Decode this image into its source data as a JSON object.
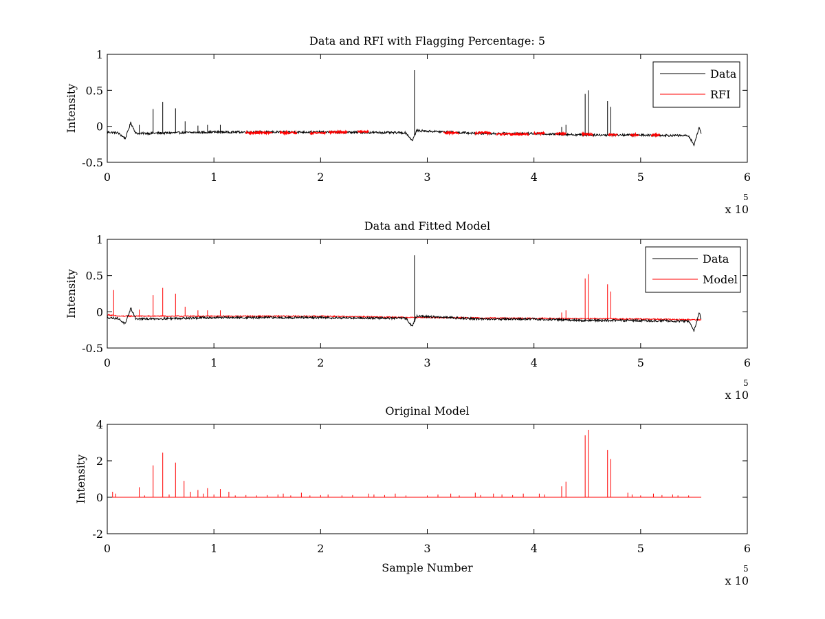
{
  "figure": {
    "background": "#ffffff"
  },
  "chart_data": [
    {
      "id": "panel1",
      "type": "line",
      "title": "Data and RFI with Flagging Percentage: 5",
      "xlabel": "",
      "ylabel": "Intensity",
      "xlim": [
        0,
        6
      ],
      "ylim": [
        -0.5,
        1
      ],
      "x_ticks": [
        0,
        1,
        2,
        3,
        4,
        5,
        6
      ],
      "x_tick_labels": [
        "0",
        "1",
        "2",
        "3",
        "4",
        "5",
        "6"
      ],
      "y_ticks": [
        -0.5,
        0,
        0.5,
        1
      ],
      "y_tick_labels": [
        "-0.5",
        "0",
        "0.5",
        "1"
      ],
      "x_exponent": {
        "base": "x 10",
        "power": "5"
      },
      "legend": {
        "position": "top-right",
        "entries": [
          "Data",
          "RFI"
        ]
      },
      "series": [
        {
          "name": "Data",
          "color": "#000000",
          "baseline": [
            [
              0,
              -0.08
            ],
            [
              0.1,
              -0.09
            ],
            [
              0.17,
              -0.17
            ],
            [
              0.22,
              0.05
            ],
            [
              0.27,
              -0.1
            ],
            [
              1,
              -0.08
            ],
            [
              2,
              -0.08
            ],
            [
              2.8,
              -0.09
            ],
            [
              2.86,
              -0.2
            ],
            [
              2.9,
              -0.06
            ],
            [
              3.5,
              -0.1
            ],
            [
              4,
              -0.1
            ],
            [
              4.5,
              -0.12
            ],
            [
              5,
              -0.12
            ],
            [
              5.45,
              -0.13
            ],
            [
              5.5,
              -0.26
            ],
            [
              5.55,
              -0.01
            ],
            [
              5.57,
              -0.12
            ]
          ],
          "noise": 0.015,
          "spikes": [
            [
              0.3,
              0.02
            ],
            [
              0.43,
              0.24
            ],
            [
              0.52,
              0.34
            ],
            [
              0.64,
              0.25
            ],
            [
              0.73,
              0.07
            ],
            [
              0.85,
              0.01
            ],
            [
              0.94,
              0.02
            ],
            [
              1.06,
              0.02
            ],
            [
              2.88,
              0.78
            ],
            [
              4.26,
              -0.01
            ],
            [
              4.3,
              0.02
            ],
            [
              4.48,
              0.45
            ],
            [
              4.51,
              0.5
            ],
            [
              4.69,
              0.35
            ],
            [
              4.72,
              0.27
            ]
          ]
        },
        {
          "name": "RFI",
          "color": "#ff0000",
          "segments": [
            [
              1.3,
              1.55,
              -0.09
            ],
            [
              1.62,
              1.78,
              -0.09
            ],
            [
              1.9,
              2.05,
              -0.09
            ],
            [
              2.08,
              2.25,
              -0.08
            ],
            [
              2.35,
              2.45,
              -0.07
            ],
            [
              3.15,
              3.3,
              -0.09
            ],
            [
              3.45,
              3.6,
              -0.09
            ],
            [
              3.65,
              3.95,
              -0.11
            ],
            [
              4.0,
              4.1,
              -0.1
            ],
            [
              4.2,
              4.3,
              -0.1
            ],
            [
              4.45,
              4.55,
              -0.11
            ],
            [
              4.7,
              4.78,
              -0.12
            ],
            [
              4.9,
              4.98,
              -0.12
            ],
            [
              5.1,
              5.18,
              -0.12
            ]
          ],
          "noise": 0.015
        }
      ]
    },
    {
      "id": "panel2",
      "type": "line",
      "title": "Data and Fitted Model",
      "xlabel": "",
      "ylabel": "Intensity",
      "xlim": [
        0,
        6
      ],
      "ylim": [
        -0.5,
        1
      ],
      "x_ticks": [
        0,
        1,
        2,
        3,
        4,
        5,
        6
      ],
      "x_tick_labels": [
        "0",
        "1",
        "2",
        "3",
        "4",
        "5",
        "6"
      ],
      "y_ticks": [
        -0.5,
        0,
        0.5,
        1
      ],
      "y_tick_labels": [
        "-0.5",
        "0",
        "0.5",
        "1"
      ],
      "x_exponent": {
        "base": "x 10",
        "power": "5"
      },
      "legend": {
        "position": "top-right",
        "entries": [
          "Data",
          "Model"
        ]
      },
      "series": [
        {
          "name": "Model",
          "color": "#ff0000",
          "baseline": [
            [
              0,
              -0.04
            ],
            [
              0.1,
              -0.06
            ],
            [
              0.5,
              -0.06
            ],
            [
              1,
              -0.06
            ],
            [
              2,
              -0.06
            ],
            [
              3,
              -0.08
            ],
            [
              4,
              -0.09
            ],
            [
              5,
              -0.1
            ],
            [
              5.57,
              -0.11
            ]
          ],
          "noise": 0.008,
          "spikes": [
            [
              0.06,
              0.3
            ],
            [
              0.3,
              0.03
            ],
            [
              0.43,
              0.23
            ],
            [
              0.52,
              0.33
            ],
            [
              0.64,
              0.25
            ],
            [
              0.73,
              0.07
            ],
            [
              0.85,
              0.02
            ],
            [
              0.94,
              0.02
            ],
            [
              1.06,
              0.02
            ],
            [
              4.26,
              -0.01
            ],
            [
              4.3,
              0.02
            ],
            [
              4.48,
              0.46
            ],
            [
              4.51,
              0.52
            ],
            [
              4.69,
              0.38
            ],
            [
              4.72,
              0.28
            ]
          ]
        },
        {
          "name": "Data",
          "color": "#000000",
          "baseline": [
            [
              0,
              -0.08
            ],
            [
              0.1,
              -0.09
            ],
            [
              0.17,
              -0.17
            ],
            [
              0.22,
              0.05
            ],
            [
              0.27,
              -0.1
            ],
            [
              1,
              -0.08
            ],
            [
              2,
              -0.08
            ],
            [
              2.8,
              -0.09
            ],
            [
              2.86,
              -0.2
            ],
            [
              2.9,
              -0.06
            ],
            [
              3.5,
              -0.1
            ],
            [
              4,
              -0.1
            ],
            [
              4.5,
              -0.12
            ],
            [
              5,
              -0.12
            ],
            [
              5.45,
              -0.13
            ],
            [
              5.5,
              -0.26
            ],
            [
              5.55,
              -0.01
            ],
            [
              5.57,
              -0.12
            ]
          ],
          "noise": 0.015,
          "spikes": [
            [
              2.88,
              0.78
            ]
          ]
        }
      ]
    },
    {
      "id": "panel3",
      "type": "line",
      "title": "Original Model",
      "xlabel": "Sample Number",
      "ylabel": "Intensity",
      "xlim": [
        0,
        6
      ],
      "ylim": [
        -2,
        4
      ],
      "x_ticks": [
        0,
        1,
        2,
        3,
        4,
        5,
        6
      ],
      "x_tick_labels": [
        "0",
        "1",
        "2",
        "3",
        "4",
        "5",
        "6"
      ],
      "y_ticks": [
        -2,
        0,
        2,
        4
      ],
      "y_tick_labels": [
        "-2",
        "0",
        "2",
        "4"
      ],
      "x_exponent": {
        "base": "x 10",
        "power": "5"
      },
      "legend": null,
      "series": [
        {
          "name": "Original Model",
          "color": "#ff0000",
          "baseline": [
            [
              0,
              0
            ],
            [
              5.57,
              0
            ]
          ],
          "noise": 0,
          "spikes": [
            [
              0.05,
              0.3
            ],
            [
              0.08,
              0.2
            ],
            [
              0.3,
              0.55
            ],
            [
              0.35,
              0.1
            ],
            [
              0.43,
              1.75
            ],
            [
              0.52,
              2.45
            ],
            [
              0.58,
              0.15
            ],
            [
              0.64,
              1.9
            ],
            [
              0.72,
              0.9
            ],
            [
              0.78,
              0.3
            ],
            [
              0.85,
              0.4
            ],
            [
              0.9,
              0.2
            ],
            [
              0.94,
              0.5
            ],
            [
              1.0,
              0.15
            ],
            [
              1.06,
              0.45
            ],
            [
              1.14,
              0.3
            ],
            [
              1.2,
              0.1
            ],
            [
              1.3,
              0.12
            ],
            [
              1.4,
              0.1
            ],
            [
              1.5,
              0.12
            ],
            [
              1.6,
              0.15
            ],
            [
              1.65,
              0.2
            ],
            [
              1.72,
              0.1
            ],
            [
              1.82,
              0.25
            ],
            [
              1.9,
              0.1
            ],
            [
              2.0,
              0.12
            ],
            [
              2.07,
              0.15
            ],
            [
              2.2,
              0.1
            ],
            [
              2.3,
              0.12
            ],
            [
              2.45,
              0.2
            ],
            [
              2.5,
              0.15
            ],
            [
              2.6,
              0.12
            ],
            [
              2.7,
              0.2
            ],
            [
              2.8,
              0.1
            ],
            [
              3.0,
              0.1
            ],
            [
              3.1,
              0.15
            ],
            [
              3.22,
              0.2
            ],
            [
              3.3,
              0.1
            ],
            [
              3.45,
              0.25
            ],
            [
              3.5,
              0.12
            ],
            [
              3.62,
              0.2
            ],
            [
              3.7,
              0.15
            ],
            [
              3.8,
              0.12
            ],
            [
              3.9,
              0.2
            ],
            [
              4.05,
              0.2
            ],
            [
              4.1,
              0.15
            ],
            [
              4.26,
              0.6
            ],
            [
              4.3,
              0.85
            ],
            [
              4.48,
              3.4
            ],
            [
              4.51,
              3.7
            ],
            [
              4.69,
              2.6
            ],
            [
              4.72,
              2.1
            ],
            [
              4.88,
              0.25
            ],
            [
              4.92,
              0.15
            ],
            [
              5.0,
              0.1
            ],
            [
              5.12,
              0.2
            ],
            [
              5.2,
              0.12
            ],
            [
              5.3,
              0.15
            ],
            [
              5.35,
              0.1
            ],
            [
              5.45,
              0.1
            ]
          ]
        }
      ]
    }
  ]
}
